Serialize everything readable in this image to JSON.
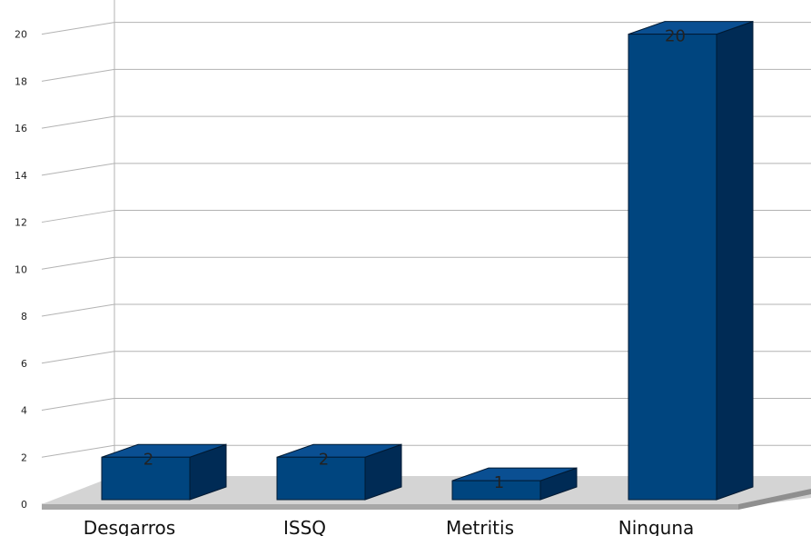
{
  "chart_data": {
    "type": "bar",
    "categories": [
      "Desgarros",
      "ISSQ",
      "Metritis",
      "Ninguna"
    ],
    "values": [
      2,
      2,
      1,
      20
    ],
    "data_labels": [
      "2",
      "2",
      "1",
      "20"
    ],
    "ylim": [
      0,
      21
    ],
    "yticks": [
      "0",
      "2",
      "4",
      "6",
      "8",
      "10",
      "12",
      "14",
      "16",
      "18",
      "20"
    ],
    "grid": true,
    "style": "3d",
    "colors": {
      "bar_front": "#00457f",
      "bar_top": "#0a4f92",
      "bar_side": "#002b55",
      "floor": "#d4d4d4",
      "grid": "#b3b3b3"
    }
  }
}
